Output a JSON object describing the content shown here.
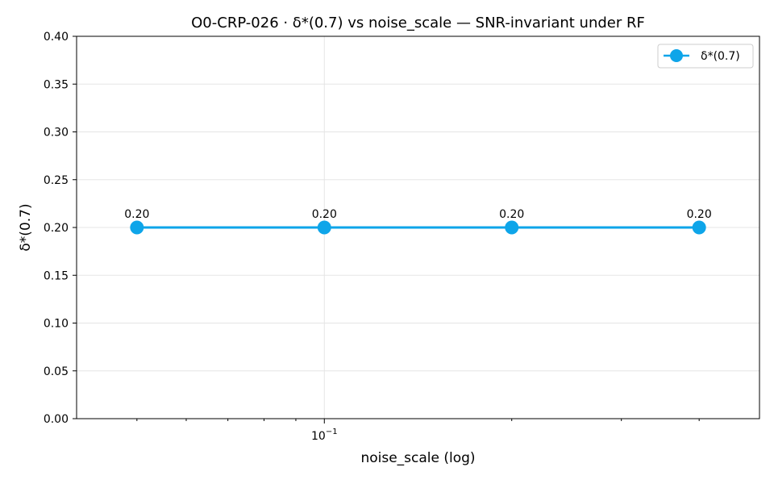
{
  "chart_data": {
    "type": "line",
    "title": "O0-CRP-026 · δ*(0.7) vs noise_scale — SNR-invariant under RF",
    "xlabel": "noise_scale (log)",
    "ylabel": "δ*(0.7)",
    "x_scale": "log",
    "xlim": [
      0.04,
      0.5
    ],
    "ylim": [
      0,
      0.4
    ],
    "x_major_ticks": [
      {
        "value": 0.1,
        "base": "10",
        "exponent": "−1"
      }
    ],
    "x_minor_ticks": [
      0.05,
      0.06,
      0.07,
      0.08,
      0.09,
      0.2,
      0.3,
      0.4
    ],
    "y_ticks": [
      {
        "value": 0.0,
        "label": "0.00"
      },
      {
        "value": 0.05,
        "label": "0.05"
      },
      {
        "value": 0.1,
        "label": "0.10"
      },
      {
        "value": 0.15,
        "label": "0.15"
      },
      {
        "value": 0.2,
        "label": "0.20"
      },
      {
        "value": 0.25,
        "label": "0.25"
      },
      {
        "value": 0.3,
        "label": "0.30"
      },
      {
        "value": 0.35,
        "label": "0.35"
      },
      {
        "value": 0.4,
        "label": "0.40"
      }
    ],
    "grid": true,
    "legend_position": "top-right",
    "series": [
      {
        "name": "δ*(0.7)",
        "color": "#0ea5e9",
        "x": [
          0.05,
          0.1,
          0.2,
          0.4
        ],
        "y": [
          0.2,
          0.2,
          0.2,
          0.2
        ],
        "labels": [
          "0.20",
          "0.20",
          "0.20",
          "0.20"
        ]
      }
    ]
  }
}
